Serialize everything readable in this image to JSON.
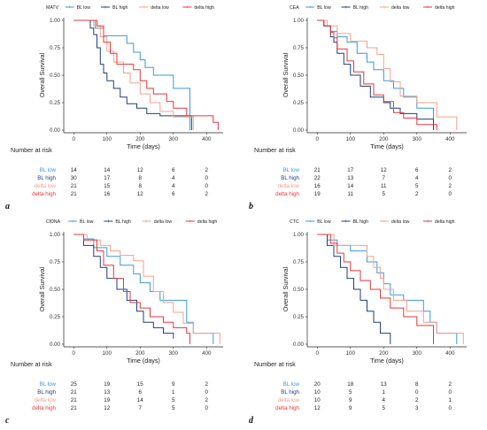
{
  "figure": {
    "panels": [
      {
        "letter": "a",
        "chart_data": {
          "type": "line",
          "legend_title": "MATV",
          "legend_position": "top",
          "xlabel": "Time (days)",
          "ylabel": "Overall Survival",
          "xlim": [
            -30,
            450
          ],
          "ylim": [
            0,
            1
          ],
          "x_ticks": [
            "0",
            "100",
            "200",
            "300",
            "400"
          ],
          "y_ticks": [
            "0.00",
            "0.25",
            "0.50",
            "0.75",
            "1.00"
          ],
          "series": [
            {
              "name": "BL low",
              "color": "#3a9ad9",
              "x": [
                0,
                55,
                65,
                90,
                160,
                180,
                200,
                215,
                240,
                255,
                300,
                350
              ],
              "y": [
                1.0,
                1.0,
                0.93,
                0.86,
                0.79,
                0.71,
                0.64,
                0.57,
                0.5,
                0.5,
                0.38,
                0.0
              ]
            },
            {
              "name": "BL high",
              "color": "#1f3f7a",
              "x": [
                0,
                50,
                60,
                70,
                80,
                90,
                100,
                120,
                140,
                160,
                190,
                220,
                260,
                335,
                355
              ],
              "y": [
                1.0,
                0.93,
                0.87,
                0.75,
                0.6,
                0.52,
                0.45,
                0.38,
                0.3,
                0.24,
                0.2,
                0.15,
                0.13,
                0.13,
                0.0
              ]
            },
            {
              "name": "delta low",
              "color": "#f5a08a",
              "x": [
                0,
                60,
                80,
                100,
                120,
                150,
                170,
                200,
                230,
                260,
                300,
                360
              ],
              "y": [
                1.0,
                0.95,
                0.85,
                0.72,
                0.62,
                0.52,
                0.43,
                0.33,
                0.25,
                0.17,
                0.12,
                0.0
              ]
            },
            {
              "name": "delta high",
              "color": "#e8363a",
              "x": [
                0,
                70,
                90,
                110,
                130,
                180,
                200,
                220,
                240,
                280,
                300,
                340,
                420,
                435
              ],
              "y": [
                1.0,
                0.95,
                0.8,
                0.7,
                0.6,
                0.55,
                0.45,
                0.38,
                0.33,
                0.26,
                0.2,
                0.13,
                0.07,
                0.0
              ]
            }
          ]
        },
        "risk_table": {
          "title": "Number at risk",
          "rows": [
            {
              "label": "BL low",
              "color": "#3a9ad9",
              "values": [
                "14",
                "14",
                "12",
                "6",
                "2"
              ]
            },
            {
              "label": "BL high",
              "color": "#1f3f7a",
              "values": [
                "30",
                "17",
                "8",
                "4",
                "0"
              ]
            },
            {
              "label": "delta low",
              "color": "#f5a08a",
              "values": [
                "21",
                "15",
                "8",
                "4",
                "0"
              ]
            },
            {
              "label": "delta high",
              "color": "#e8363a",
              "values": [
                "21",
                "16",
                "12",
                "6",
                "2"
              ]
            }
          ]
        }
      },
      {
        "letter": "b",
        "chart_data": {
          "type": "line",
          "legend_title": "CEA",
          "legend_position": "top",
          "xlabel": "Time (days)",
          "ylabel": "Overall Survival",
          "xlim": [
            -30,
            450
          ],
          "ylim": [
            0,
            1
          ],
          "x_ticks": [
            "0",
            "100",
            "200",
            "300",
            "400"
          ],
          "y_ticks": [
            "0.00",
            "0.25",
            "0.50",
            "0.75",
            "1.00"
          ],
          "series": [
            {
              "name": "BL low",
              "color": "#3a9ad9",
              "x": [
                0,
                20,
                40,
                60,
                90,
                120,
                150,
                170,
                200,
                230,
                260,
                300,
                350
              ],
              "y": [
                1.0,
                0.95,
                0.9,
                0.85,
                0.8,
                0.7,
                0.62,
                0.55,
                0.45,
                0.38,
                0.3,
                0.2,
                0.0
              ]
            },
            {
              "name": "BL high",
              "color": "#1f3f7a",
              "x": [
                0,
                20,
                40,
                50,
                60,
                80,
                100,
                130,
                160,
                200,
                220,
                250,
                300,
                350
              ],
              "y": [
                1.0,
                0.95,
                0.85,
                0.8,
                0.7,
                0.6,
                0.5,
                0.4,
                0.3,
                0.25,
                0.2,
                0.15,
                0.1,
                0.0
              ]
            },
            {
              "name": "delta low",
              "color": "#f5a08a",
              "x": [
                0,
                30,
                60,
                100,
                150,
                180,
                200,
                220,
                250,
                300,
                360,
                420
              ],
              "y": [
                1.0,
                0.95,
                0.88,
                0.81,
                0.75,
                0.69,
                0.56,
                0.44,
                0.31,
                0.25,
                0.12,
                0.0
              ]
            },
            {
              "name": "delta high",
              "color": "#e8363a",
              "x": [
                0,
                20,
                40,
                50,
                60,
                90,
                110,
                140,
                170,
                200,
                230,
                260,
                300,
                360
              ],
              "y": [
                1.0,
                0.95,
                0.89,
                0.84,
                0.74,
                0.63,
                0.53,
                0.42,
                0.32,
                0.26,
                0.16,
                0.11,
                0.05,
                0.0
              ]
            }
          ]
        },
        "risk_table": {
          "title": "Number at risk",
          "rows": [
            {
              "label": "BL low",
              "color": "#3a9ad9",
              "values": [
                "21",
                "17",
                "12",
                "6",
                "2"
              ]
            },
            {
              "label": "BL high",
              "color": "#1f3f7a",
              "values": [
                "22",
                "13",
                "7",
                "4",
                "0"
              ]
            },
            {
              "label": "delta low",
              "color": "#f5a08a",
              "values": [
                "16",
                "14",
                "11",
                "5",
                "2"
              ]
            },
            {
              "label": "delta high",
              "color": "#e8363a",
              "values": [
                "19",
                "11",
                "5",
                "2",
                "0"
              ]
            }
          ]
        }
      },
      {
        "letter": "c",
        "chart_data": {
          "type": "line",
          "legend_title": "CfDNA",
          "legend_position": "top",
          "xlabel": "Time (days)",
          "ylabel": "Overall Survival",
          "xlim": [
            -30,
            450
          ],
          "ylim": [
            0,
            1
          ],
          "x_ticks": [
            "0",
            "100",
            "200",
            "300",
            "400"
          ],
          "y_ticks": [
            "0.00",
            "0.25",
            "0.50",
            "0.75",
            "1.00"
          ],
          "series": [
            {
              "name": "BL low",
              "color": "#3a9ad9",
              "x": [
                0,
                30,
                60,
                100,
                140,
                180,
                200,
                230,
                260,
                300,
                340,
                360,
                420
              ],
              "y": [
                1.0,
                0.96,
                0.88,
                0.8,
                0.72,
                0.64,
                0.56,
                0.48,
                0.4,
                0.4,
                0.2,
                0.1,
                0.0
              ]
            },
            {
              "name": "BL high",
              "color": "#1f3f7a",
              "x": [
                0,
                30,
                60,
                80,
                100,
                130,
                160,
                190,
                210,
                240,
                270,
                300
              ],
              "y": [
                1.0,
                0.9,
                0.8,
                0.7,
                0.6,
                0.5,
                0.4,
                0.3,
                0.2,
                0.15,
                0.1,
                0.05
              ]
            },
            {
              "name": "delta low",
              "color": "#f5a08a",
              "x": [
                0,
                40,
                80,
                110,
                140,
                180,
                210,
                240,
                270,
                300,
                330,
                360,
                440
              ],
              "y": [
                1.0,
                0.95,
                0.9,
                0.85,
                0.81,
                0.76,
                0.62,
                0.48,
                0.38,
                0.29,
                0.19,
                0.1,
                0.0
              ]
            },
            {
              "name": "delta high",
              "color": "#e8363a",
              "x": [
                0,
                30,
                70,
                90,
                120,
                150,
                170,
                200,
                230,
                270,
                300,
                340,
                350
              ],
              "y": [
                1.0,
                0.95,
                0.85,
                0.72,
                0.6,
                0.48,
                0.38,
                0.33,
                0.25,
                0.2,
                0.15,
                0.1,
                0.0
              ]
            }
          ]
        },
        "risk_table": {
          "title": "Number at risk",
          "rows": [
            {
              "label": "BL low",
              "color": "#3a9ad9",
              "values": [
                "25",
                "19",
                "15",
                "9",
                "2"
              ]
            },
            {
              "label": "BL high",
              "color": "#1f3f7a",
              "values": [
                "21",
                "13",
                "6",
                "1",
                "0"
              ]
            },
            {
              "label": "delta low",
              "color": "#f5a08a",
              "values": [
                "21",
                "19",
                "14",
                "5",
                "2"
              ]
            },
            {
              "label": "delta high",
              "color": "#e8363a",
              "values": [
                "21",
                "12",
                "7",
                "5",
                "0"
              ]
            }
          ]
        }
      },
      {
        "letter": "d",
        "chart_data": {
          "type": "line",
          "legend_title": "CTC",
          "legend_position": "top",
          "xlabel": "Time (days)",
          "ylabel": "Overall Survival",
          "xlim": [
            -30,
            450
          ],
          "ylim": [
            0,
            1
          ],
          "x_ticks": [
            "0",
            "100",
            "200",
            "300",
            "400"
          ],
          "y_ticks": [
            "0.00",
            "0.25",
            "0.50",
            "0.75",
            "1.00"
          ],
          "series": [
            {
              "name": "BL low",
              "color": "#3a9ad9",
              "x": [
                0,
                30,
                60,
                100,
                150,
                180,
                200,
                220,
                260,
                320,
                340,
                360,
                420
              ],
              "y": [
                1.0,
                0.95,
                0.9,
                0.85,
                0.75,
                0.65,
                0.55,
                0.45,
                0.4,
                0.3,
                0.2,
                0.1,
                0.0
              ]
            },
            {
              "name": "BL high",
              "color": "#1f3f7a",
              "x": [
                0,
                30,
                50,
                70,
                90,
                110,
                130,
                150,
                170,
                190,
                220
              ],
              "y": [
                1.0,
                0.9,
                0.8,
                0.7,
                0.6,
                0.5,
                0.4,
                0.3,
                0.2,
                0.1,
                0.0
              ]
            },
            {
              "name": "delta low",
              "color": "#f5a08a",
              "x": [
                0,
                50,
                150,
                170,
                190,
                200,
                230,
                270,
                320,
                360,
                440
              ],
              "y": [
                1.0,
                0.9,
                0.8,
                0.7,
                0.6,
                0.5,
                0.4,
                0.3,
                0.2,
                0.1,
                0.0
              ]
            },
            {
              "name": "delta high",
              "color": "#e8363a",
              "x": [
                0,
                40,
                60,
                80,
                100,
                130,
                160,
                190,
                220,
                260,
                300,
                350
              ],
              "y": [
                1.0,
                0.92,
                0.83,
                0.75,
                0.67,
                0.58,
                0.5,
                0.42,
                0.33,
                0.25,
                0.17,
                0.0
              ]
            }
          ]
        },
        "risk_table": {
          "title": "Number at risk",
          "rows": [
            {
              "label": "BL low",
              "color": "#3a9ad9",
              "values": [
                "20",
                "18",
                "13",
                "8",
                "2"
              ]
            },
            {
              "label": "BL high",
              "color": "#1f3f7a",
              "values": [
                "10",
                "5",
                "1",
                "0",
                "0"
              ]
            },
            {
              "label": "delta low",
              "color": "#f5a08a",
              "values": [
                "10",
                "9",
                "4",
                "2",
                "1"
              ]
            },
            {
              "label": "delta high",
              "color": "#e8363a",
              "values": [
                "12",
                "9",
                "5",
                "3",
                "0"
              ]
            }
          ]
        }
      }
    ]
  }
}
